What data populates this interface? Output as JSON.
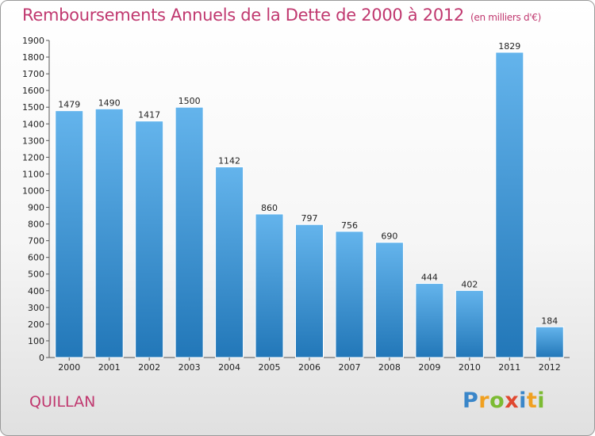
{
  "title": "Remboursements Annuels de la Dette de 2000 à 2012",
  "unit": "(en milliers d'€)",
  "commune": "QUILLAN",
  "logo": {
    "letters": [
      "P",
      "r",
      "o",
      "x",
      "i",
      "t",
      "i"
    ],
    "colors": [
      "#3a86c9",
      "#f0a020",
      "#7cbb33",
      "#e04830",
      "#3a86c9",
      "#f0a020",
      "#7cbb33"
    ]
  },
  "colors": {
    "bar_dark": "#2277b8",
    "bar_light": "#64b4ec",
    "title": "#c0386f"
  },
  "chart_data": {
    "type": "bar",
    "categories": [
      "2000",
      "2001",
      "2002",
      "2003",
      "2004",
      "2005",
      "2006",
      "2007",
      "2008",
      "2009",
      "2010",
      "2011",
      "2012"
    ],
    "values": [
      1479,
      1490,
      1417,
      1500,
      1142,
      860,
      797,
      756,
      690,
      444,
      402,
      1829,
      184
    ],
    "ylim": [
      0,
      1900
    ],
    "yticks": [
      0,
      100,
      200,
      300,
      400,
      500,
      600,
      700,
      800,
      900,
      1000,
      1100,
      1200,
      1300,
      1400,
      1500,
      1600,
      1700,
      1800,
      1900
    ],
    "grid": false
  }
}
